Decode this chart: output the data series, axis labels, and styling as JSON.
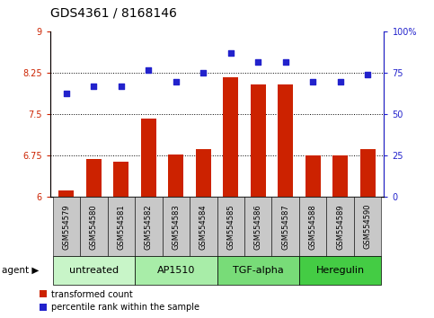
{
  "title": "GDS4361 / 8168146",
  "samples": [
    "GSM554579",
    "GSM554580",
    "GSM554581",
    "GSM554582",
    "GSM554583",
    "GSM554584",
    "GSM554585",
    "GSM554586",
    "GSM554587",
    "GSM554588",
    "GSM554589",
    "GSM554590"
  ],
  "red_values": [
    6.12,
    6.7,
    6.65,
    7.43,
    6.77,
    6.87,
    8.17,
    8.05,
    8.05,
    6.75,
    6.75,
    6.87
  ],
  "blue_values": [
    63,
    67,
    67,
    77,
    70,
    75,
    87,
    82,
    82,
    70,
    70,
    74
  ],
  "ylim_left": [
    6.0,
    9.0
  ],
  "ylim_right": [
    0,
    100
  ],
  "yticks_left": [
    6.0,
    6.75,
    7.5,
    8.25,
    9.0
  ],
  "ytick_labels_left": [
    "6",
    "6.75",
    "7.5",
    "8.25",
    "9"
  ],
  "yticks_right": [
    0,
    25,
    50,
    75,
    100
  ],
  "ytick_labels_right": [
    "0",
    "25",
    "50",
    "75",
    "100%"
  ],
  "hlines": [
    6.75,
    7.5,
    8.25
  ],
  "agents": [
    {
      "label": "untreated",
      "start": 0,
      "end": 3,
      "color": "#c8f5c8"
    },
    {
      "label": "AP1510",
      "start": 3,
      "end": 6,
      "color": "#a8eda8"
    },
    {
      "label": "TGF-alpha",
      "start": 6,
      "end": 9,
      "color": "#78dc78"
    },
    {
      "label": "Heregulin",
      "start": 9,
      "end": 12,
      "color": "#44cc44"
    }
  ],
  "bar_color": "#cc2200",
  "dot_color": "#2222cc",
  "bg_plot": "#ffffff",
  "xtick_bg": "#c8c8c8",
  "legend_red_label": "transformed count",
  "legend_blue_label": "percentile rank within the sample",
  "title_fontsize": 10,
  "tick_fontsize": 7,
  "sample_fontsize": 6,
  "agent_fontsize": 8
}
